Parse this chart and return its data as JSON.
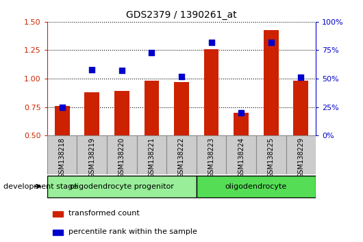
{
  "title": "GDS2379 / 1390261_at",
  "samples": [
    "GSM138218",
    "GSM138219",
    "GSM138220",
    "GSM138221",
    "GSM138222",
    "GSM138223",
    "GSM138224",
    "GSM138225",
    "GSM138229"
  ],
  "transformed_count": [
    0.76,
    0.88,
    0.89,
    0.98,
    0.97,
    1.26,
    0.7,
    1.43,
    0.98
  ],
  "percentile_rank": [
    25,
    58,
    57,
    73,
    52,
    82,
    20,
    82,
    51
  ],
  "ylim_left": [
    0.5,
    1.5
  ],
  "ylim_right": [
    0,
    100
  ],
  "yticks_left": [
    0.5,
    0.75,
    1.0,
    1.25,
    1.5
  ],
  "yticks_right": [
    0,
    25,
    50,
    75,
    100
  ],
  "bar_color": "#cc2200",
  "dot_color": "#0000cc",
  "grid_color": "#000000",
  "groups": [
    {
      "label": "oligodendrocyte progenitor",
      "start": 0,
      "end": 4,
      "color": "#99ee99"
    },
    {
      "label": "oligodendrocyte",
      "start": 5,
      "end": 8,
      "color": "#55dd55"
    }
  ],
  "dev_stage_label": "development stage",
  "legend_items": [
    {
      "color": "#cc2200",
      "label": "transformed count"
    },
    {
      "color": "#0000cc",
      "label": "percentile rank within the sample"
    }
  ],
  "tick_color_left": "#cc2200",
  "tick_color_right": "#0000cc",
  "bar_width": 0.5,
  "dot_size": 40,
  "xlabel_bg": "#cccccc",
  "xlabel_border": "#888888"
}
